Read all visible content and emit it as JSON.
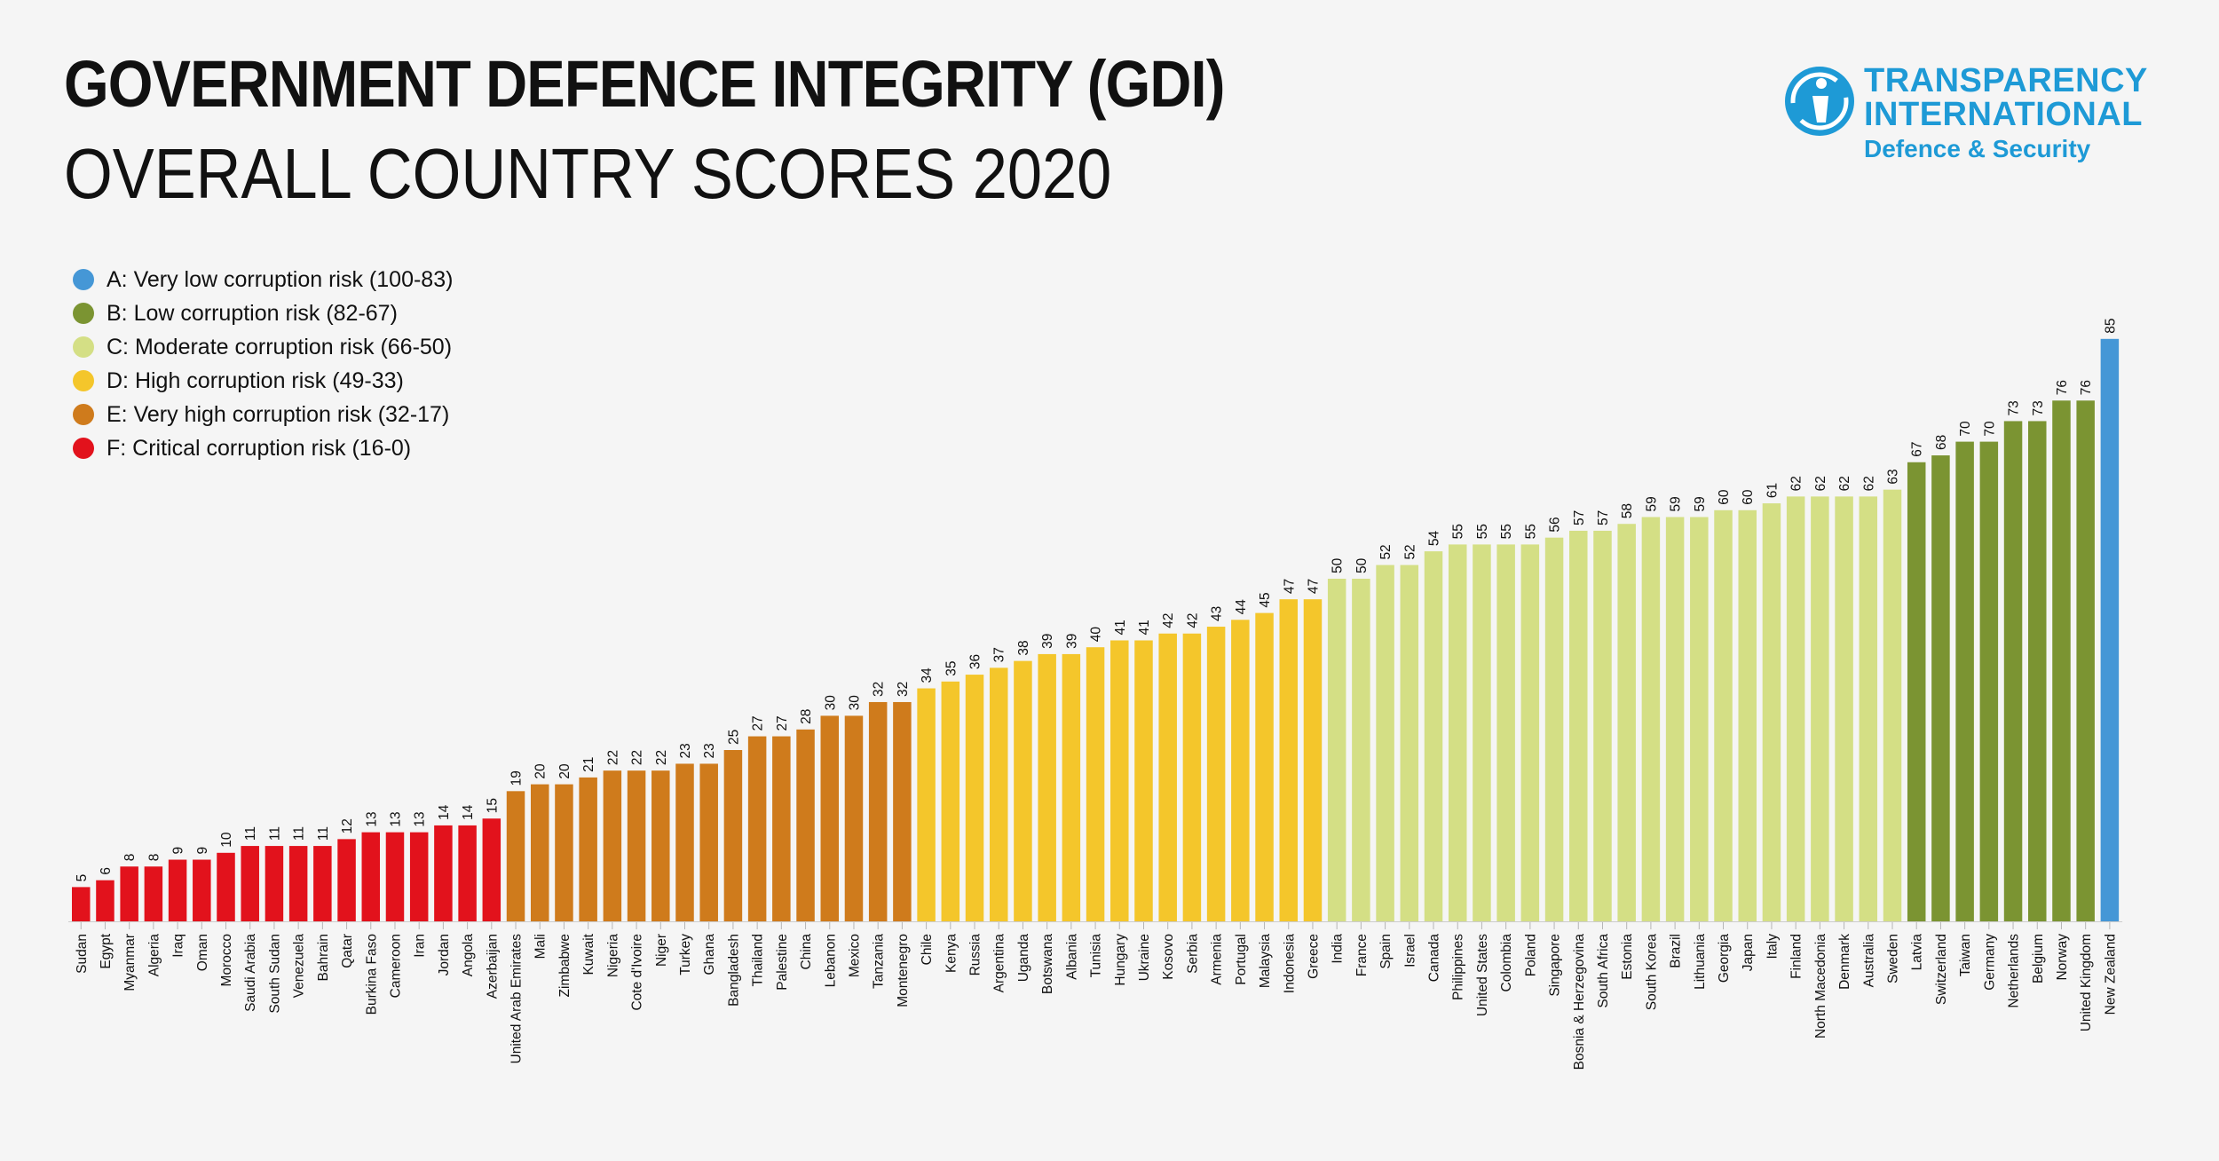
{
  "title": {
    "line1": "GOVERNMENT DEFENCE INTEGRITY (GDI)",
    "line2": "OVERALL COUNTRY SCORES 2020"
  },
  "logo": {
    "line1": "TRANSPARENCY",
    "line2": "INTERNATIONAL",
    "line3": "Defence & Security",
    "color": "#1e9ad6"
  },
  "legend": [
    {
      "label": "A: Very low corruption risk (100-83)",
      "color": "#4597d6"
    },
    {
      "label": "B: Low corruption risk (82-67)",
      "color": "#7b9432"
    },
    {
      "label": "C: Moderate corruption risk (66-50)",
      "color": "#d4df85"
    },
    {
      "label": "D: High corruption risk (49-33)",
      "color": "#f4c62b"
    },
    {
      "label": "E: Very high corruption risk (32-17)",
      "color": "#cf7b1c"
    },
    {
      "label": "F: Critical corruption risk (16-0)",
      "color": "#e2121c"
    }
  ],
  "chart_data": {
    "type": "bar",
    "grid": false,
    "legend_position": "top-left",
    "categories": [
      "Sudan",
      "Egypt",
      "Myanmar",
      "Algeria",
      "Iraq",
      "Oman",
      "Morocco",
      "Saudi Arabia",
      "South Sudan",
      "Venezuela",
      "Bahrain",
      "Qatar",
      "Burkina Faso",
      "Cameroon",
      "Iran",
      "Jordan",
      "Angola",
      "Azerbaijan",
      "United Arab Emirates",
      "Mali",
      "Zimbabwe",
      "Kuwait",
      "Nigeria",
      "Cote d'Ivoire",
      "Niger",
      "Turkey",
      "Ghana",
      "Bangladesh",
      "Thailand",
      "Palestine",
      "China",
      "Lebanon",
      "Mexico",
      "Tanzania",
      "Montenegro",
      "Chile",
      "Kenya",
      "Russia",
      "Argentina",
      "Uganda",
      "Botswana",
      "Albania",
      "Tunisia",
      "Hungary",
      "Ukraine",
      "Kosovo",
      "Serbia",
      "Armenia",
      "Portugal",
      "Malaysia",
      "Indonesia",
      "Greece",
      "India",
      "France",
      "Spain",
      "Israel",
      "Canada",
      "Philippines",
      "United States",
      "Colombia",
      "Poland",
      "Singapore",
      "Bosnia & Herzegovina",
      "South Africa",
      "Estonia",
      "South Korea",
      "Brazil",
      "Lithuania",
      "Georgia",
      "Japan",
      "Italy",
      "Finland",
      "North Macedonia",
      "Denmark",
      "Australia",
      "Sweden",
      "Latvia",
      "Switzerland",
      "Taiwan",
      "Germany",
      "Netherlands",
      "Belgium",
      "Norway",
      "United Kingdom",
      "New Zealand"
    ],
    "values": [
      5,
      6,
      8,
      8,
      9,
      9,
      10,
      11,
      11,
      11,
      11,
      12,
      13,
      13,
      13,
      14,
      14,
      15,
      19,
      20,
      20,
      21,
      22,
      22,
      22,
      23,
      23,
      25,
      27,
      27,
      28,
      30,
      30,
      32,
      32,
      34,
      35,
      36,
      37,
      38,
      39,
      39,
      40,
      41,
      41,
      42,
      42,
      43,
      44,
      45,
      47,
      47,
      50,
      50,
      52,
      52,
      54,
      55,
      55,
      55,
      55,
      56,
      57,
      57,
      58,
      59,
      59,
      59,
      60,
      60,
      61,
      62,
      62,
      62,
      62,
      63,
      67,
      68,
      70,
      70,
      73,
      73,
      76,
      76,
      85
    ]
  }
}
